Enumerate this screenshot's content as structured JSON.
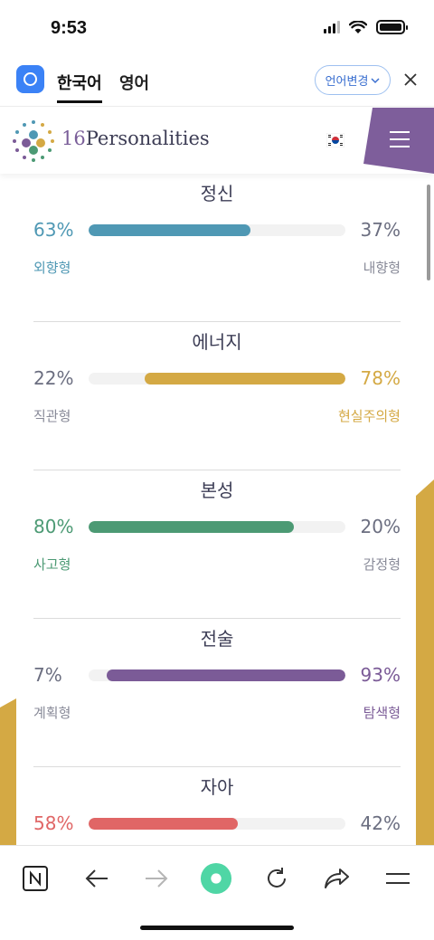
{
  "status": {
    "time": "9:53"
  },
  "translate_bar": {
    "tab_korean": "한국어",
    "tab_english": "영어",
    "change_language": "언어변경"
  },
  "site": {
    "logo_number": "16",
    "logo_word": "Personalities"
  },
  "traits": [
    {
      "title": "정신",
      "left_pct": "63%",
      "right_pct": "37%",
      "left_label": "외향형",
      "right_label": "내향형",
      "fill_side": "left",
      "fill_value": 63,
      "color": "#4f98b4",
      "dominant": "left"
    },
    {
      "title": "에너지",
      "left_pct": "22%",
      "right_pct": "78%",
      "left_label": "직관형",
      "right_label": "현실주의형",
      "fill_side": "right",
      "fill_value": 78,
      "color": "#d4a944",
      "dominant": "right"
    },
    {
      "title": "본성",
      "left_pct": "80%",
      "right_pct": "20%",
      "left_label": "사고형",
      "right_label": "감정형",
      "fill_side": "left",
      "fill_value": 80,
      "color": "#4c9a74",
      "dominant": "left"
    },
    {
      "title": "전술",
      "left_pct": "7%",
      "right_pct": "93%",
      "left_label": "계획형",
      "right_label": "탐색형",
      "fill_side": "right",
      "fill_value": 93,
      "color": "#7b5b97",
      "dominant": "right"
    },
    {
      "title": "자아",
      "left_pct": "58%",
      "right_pct": "42%",
      "left_label": "",
      "right_label": "",
      "fill_side": "left",
      "fill_value": 58,
      "color": "#e06666",
      "dominant": "left"
    }
  ],
  "colors": {
    "accent_purple": "#7e5e9b",
    "accent_gold": "#d4a944"
  },
  "toolbar_icons": [
    "notion-icon",
    "back-arrow-icon",
    "forward-arrow-icon",
    "home-circle-icon",
    "reload-icon",
    "share-icon",
    "menu-icon"
  ]
}
